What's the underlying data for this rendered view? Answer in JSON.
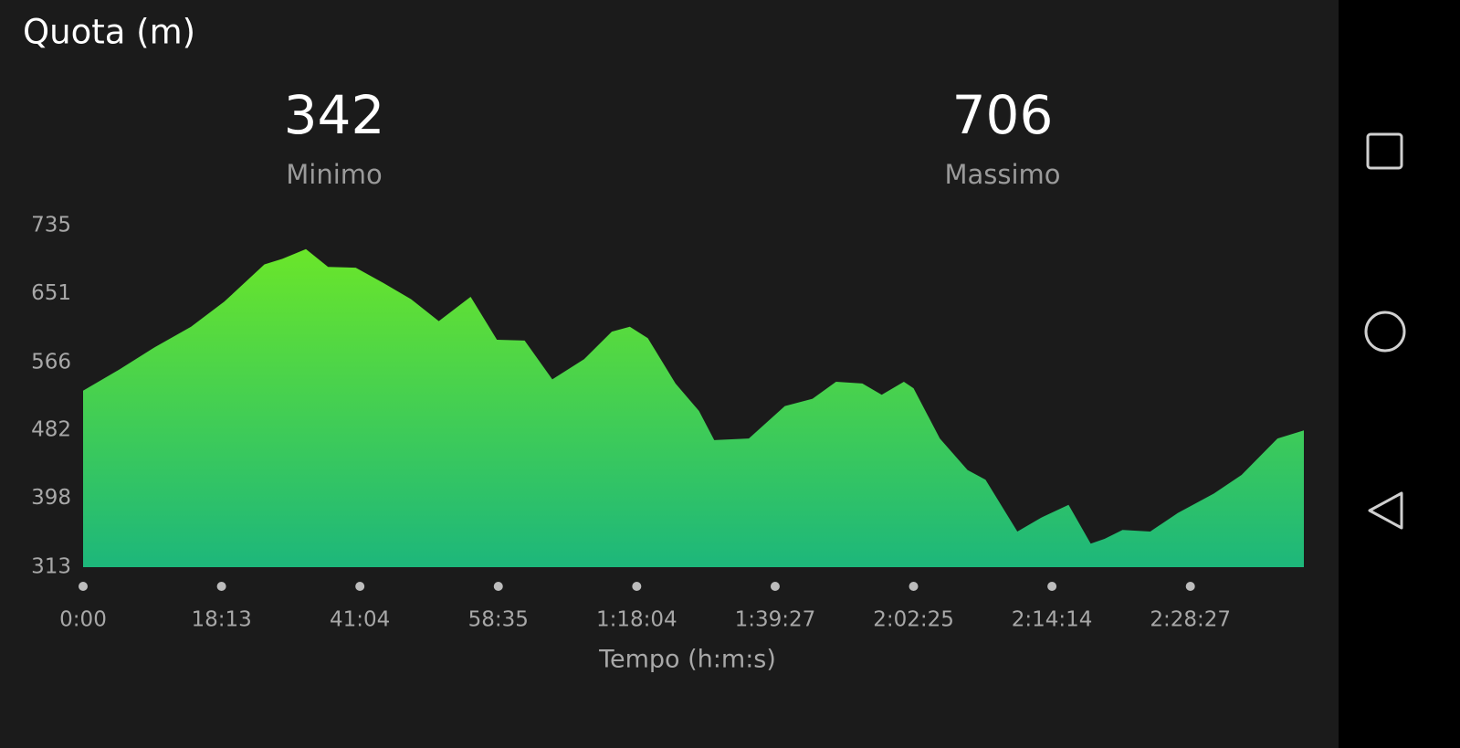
{
  "header": {
    "title": "Quota (m)"
  },
  "stats": [
    {
      "value": "342",
      "label": "Minimo"
    },
    {
      "value": "706",
      "label": "Massimo"
    }
  ],
  "chart_data": {
    "type": "area",
    "x": [
      0,
      0.26,
      0.52,
      0.78,
      1.02,
      1.31,
      1.44,
      1.61,
      1.77,
      1.97,
      2.17,
      2.37,
      2.57,
      2.8,
      2.99,
      3.19,
      3.39,
      3.62,
      3.82,
      3.95,
      4.08,
      4.28,
      4.45,
      4.56,
      4.81,
      5.07,
      5.27,
      5.44,
      5.63,
      5.77,
      5.93,
      6.0,
      6.19,
      6.39,
      6.52,
      6.75,
      6.92,
      7.12,
      7.28,
      7.38,
      7.51,
      7.71,
      7.91,
      8.17,
      8.37,
      8.63,
      8.82
    ],
    "values": [
      531,
      557,
      585,
      610,
      641,
      687,
      694,
      706,
      684,
      683,
      664,
      644,
      617,
      647,
      594,
      593,
      545,
      570,
      604,
      610,
      596,
      540,
      506,
      470,
      472,
      512,
      521,
      542,
      540,
      526,
      542,
      534,
      472,
      433,
      421,
      357,
      374,
      390,
      342,
      348,
      359,
      357,
      380,
      404,
      427,
      472,
      482
    ],
    "colors": [
      "#6ae62a",
      "#1db77b"
    ],
    "xlim": [
      0,
      8.82
    ],
    "xticks": [
      {
        "value": 0,
        "label": "0:00"
      },
      {
        "value": 1,
        "label": "18:13"
      },
      {
        "value": 2,
        "label": "41:04"
      },
      {
        "value": 3,
        "label": "58:35"
      },
      {
        "value": 4,
        "label": "1:18:04"
      },
      {
        "value": 5,
        "label": "1:39:27"
      },
      {
        "value": 6,
        "label": "2:02:25"
      },
      {
        "value": 7,
        "label": "2:14:14"
      },
      {
        "value": 8,
        "label": "2:28:27"
      }
    ],
    "ylim": [
      313,
      735
    ],
    "yticks": [
      313,
      398,
      482,
      566,
      651,
      735
    ],
    "xlabel": "Tempo (h:m:s)"
  }
}
